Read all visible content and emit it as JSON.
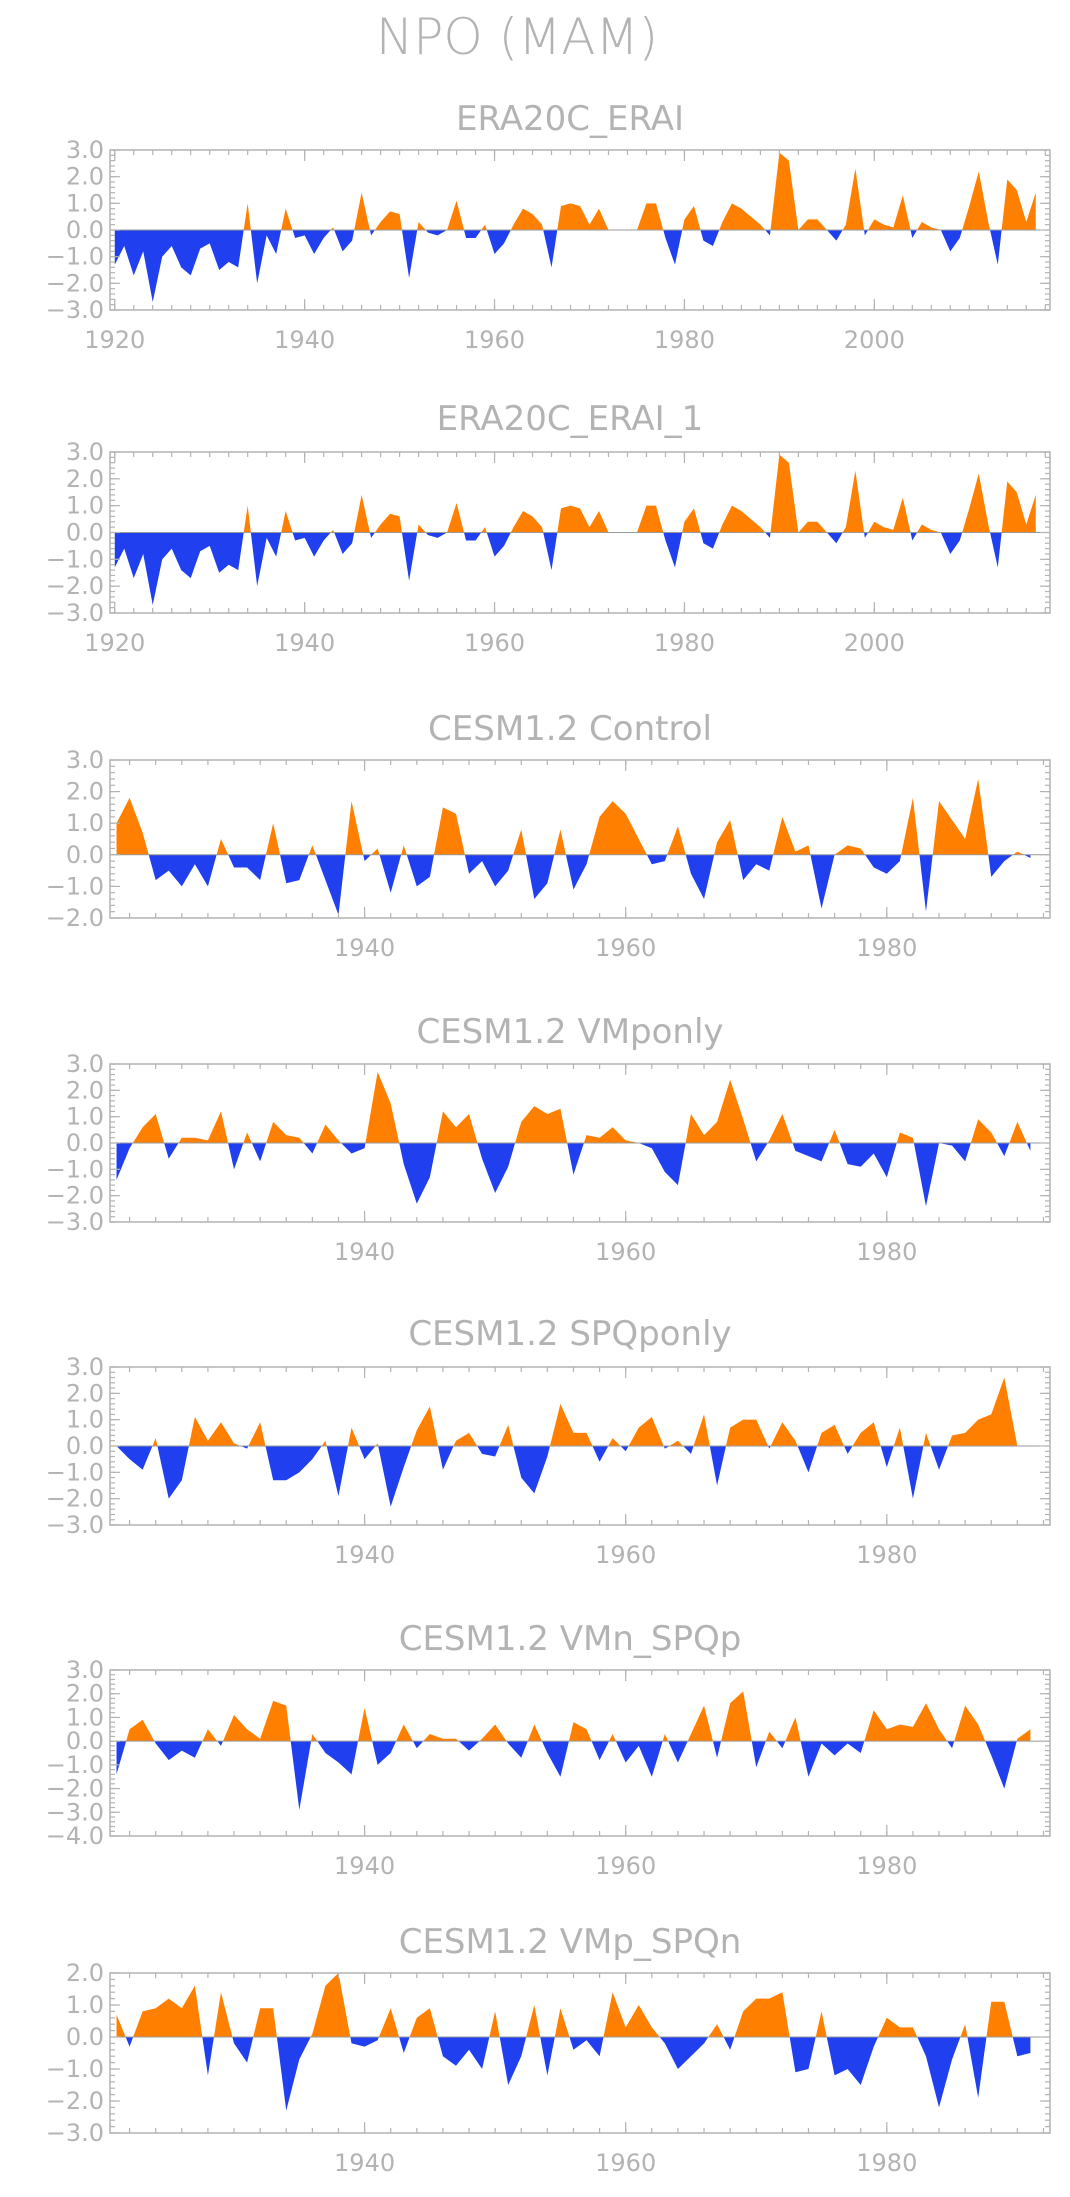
{
  "title": "NPO (MAM)",
  "colors": {
    "positive": "#ff8000",
    "negative": "#2040f0",
    "text": "#b3b3b3",
    "axis": "#b3b3b3"
  },
  "chart_data": [
    {
      "type": "area",
      "title": "ERA20C_ERAI",
      "x_start": 1920,
      "xlim": [
        1919.5,
        2018.5
      ],
      "xticks": [
        1920,
        1940,
        1960,
        1980,
        2000
      ],
      "ylim": [
        -3.0,
        3.0
      ],
      "yticks": [
        3.0,
        2.0,
        1.0,
        0.0,
        -1.0,
        -2.0,
        -3.0
      ],
      "y_tick_labels": [
        "3.0",
        "2.0",
        "1.0",
        "0.0",
        "−1.0",
        "−2.0",
        "−3.0"
      ],
      "values": [
        -1.3,
        -0.6,
        -1.7,
        -0.8,
        -2.7,
        -1.0,
        -0.6,
        -1.4,
        -1.7,
        -0.7,
        -0.5,
        -1.5,
        -1.2,
        -1.4,
        1.0,
        -2.0,
        -0.2,
        -0.9,
        0.8,
        -0.3,
        -0.2,
        -0.9,
        -0.3,
        0.1,
        -0.8,
        -0.4,
        1.4,
        -0.2,
        0.3,
        0.7,
        0.6,
        -1.8,
        0.3,
        -0.1,
        -0.2,
        0.0,
        1.1,
        -0.3,
        -0.3,
        0.2,
        -0.9,
        -0.5,
        0.2,
        0.8,
        0.6,
        0.2,
        -1.4,
        0.9,
        1.0,
        0.9,
        0.2,
        0.8,
        0.0,
        0.0,
        0.0,
        0.0,
        1.0,
        1.0,
        -0.3,
        -1.3,
        0.4,
        0.9,
        -0.4,
        -0.6,
        0.3,
        1.0,
        0.8,
        0.5,
        0.2,
        -0.2,
        2.9,
        2.6,
        0.0,
        0.4,
        0.4,
        0.0,
        -0.4,
        0.2,
        2.3,
        -0.2,
        0.4,
        0.2,
        0.1,
        1.3,
        -0.3,
        0.3,
        0.1,
        0.0,
        -0.8,
        -0.3,
        0.9,
        2.2,
        0.3,
        -1.3,
        1.9,
        1.5,
        0.3,
        1.4
      ]
    },
    {
      "type": "area",
      "title": "ERA20C_ERAI_1",
      "x_start": 1920,
      "xlim": [
        1919.5,
        2018.5
      ],
      "xticks": [
        1920,
        1940,
        1960,
        1980,
        2000
      ],
      "ylim": [
        -3.0,
        3.0
      ],
      "yticks": [
        3.0,
        2.0,
        1.0,
        0.0,
        -1.0,
        -2.0,
        -3.0
      ],
      "y_tick_labels": [
        "3.0",
        "2.0",
        "1.0",
        "0.0",
        "−1.0",
        "−2.0",
        "−3.0"
      ],
      "values": [
        -1.3,
        -0.6,
        -1.7,
        -0.8,
        -2.7,
        -1.0,
        -0.6,
        -1.4,
        -1.7,
        -0.7,
        -0.5,
        -1.5,
        -1.2,
        -1.4,
        1.0,
        -2.0,
        -0.2,
        -0.9,
        0.8,
        -0.3,
        -0.2,
        -0.9,
        -0.3,
        0.1,
        -0.8,
        -0.4,
        1.4,
        -0.2,
        0.3,
        0.7,
        0.6,
        -1.8,
        0.3,
        -0.1,
        -0.2,
        0.0,
        1.1,
        -0.3,
        -0.3,
        0.2,
        -0.9,
        -0.5,
        0.2,
        0.8,
        0.6,
        0.2,
        -1.4,
        0.9,
        1.0,
        0.9,
        0.2,
        0.8,
        0.0,
        0.0,
        0.0,
        0.0,
        1.0,
        1.0,
        -0.3,
        -1.3,
        0.4,
        0.9,
        -0.4,
        -0.6,
        0.3,
        1.0,
        0.8,
        0.5,
        0.2,
        -0.2,
        2.9,
        2.6,
        0.0,
        0.4,
        0.4,
        0.0,
        -0.4,
        0.2,
        2.3,
        -0.2,
        0.4,
        0.2,
        0.1,
        1.3,
        -0.3,
        0.3,
        0.1,
        0.0,
        -0.8,
        -0.3,
        0.9,
        2.2,
        0.3,
        -1.3,
        1.9,
        1.5,
        0.3,
        1.4
      ]
    },
    {
      "type": "area",
      "title": "CESM1.2 Control",
      "x_start": 1921,
      "xlim": [
        1920.5,
        1992.5
      ],
      "xticks": [
        1940,
        1960,
        1980
      ],
      "ylim": [
        -2.0,
        3.0
      ],
      "yticks": [
        3.0,
        2.0,
        1.0,
        0.0,
        -1.0,
        -2.0
      ],
      "y_tick_labels": [
        "3.0",
        "2.0",
        "1.0",
        "0.0",
        "−1.0",
        "−2.0"
      ],
      "values": [
        1.0,
        1.8,
        0.7,
        -0.8,
        -0.5,
        -1.0,
        -0.3,
        -1.0,
        0.5,
        -0.4,
        -0.4,
        -0.8,
        1.0,
        -0.9,
        -0.8,
        0.3,
        -0.8,
        -1.9,
        1.7,
        -0.2,
        0.2,
        -1.2,
        0.3,
        -1.0,
        -0.7,
        1.5,
        1.3,
        -0.6,
        -0.2,
        -1.0,
        -0.5,
        0.8,
        -1.4,
        -0.9,
        0.8,
        -1.1,
        -0.3,
        1.2,
        1.7,
        1.3,
        0.5,
        -0.3,
        -0.2,
        0.9,
        -0.6,
        -1.4,
        0.4,
        1.1,
        -0.8,
        -0.3,
        -0.5,
        1.2,
        0.1,
        0.3,
        -1.7,
        0.0,
        0.3,
        0.2,
        -0.4,
        -0.6,
        -0.2,
        1.8,
        -1.8,
        1.7,
        1.1,
        0.5,
        2.4,
        -0.7,
        -0.2,
        0.1,
        -0.1
      ]
    },
    {
      "type": "area",
      "title": "CESM1.2 VMponly",
      "x_start": 1921,
      "xlim": [
        1920.5,
        1992.5
      ],
      "xticks": [
        1940,
        1960,
        1980
      ],
      "ylim": [
        -3.0,
        3.0
      ],
      "yticks": [
        3.0,
        2.0,
        1.0,
        0.0,
        -1.0,
        -2.0,
        -3.0
      ],
      "y_tick_labels": [
        "3.0",
        "2.0",
        "1.0",
        "0.0",
        "−1.0",
        "−2.0",
        "−3.0"
      ],
      "values": [
        -1.4,
        -0.2,
        0.6,
        1.1,
        -0.6,
        0.2,
        0.2,
        0.1,
        1.2,
        -1.0,
        0.4,
        -0.7,
        0.8,
        0.3,
        0.2,
        -0.4,
        0.7,
        0.1,
        -0.4,
        -0.2,
        2.7,
        1.5,
        -0.8,
        -2.3,
        -1.3,
        1.2,
        0.6,
        1.1,
        -0.6,
        -1.9,
        -0.9,
        0.8,
        1.4,
        1.1,
        1.3,
        -1.2,
        0.3,
        0.2,
        0.6,
        0.1,
        0.0,
        -0.2,
        -1.1,
        -1.6,
        1.1,
        0.3,
        0.8,
        2.4,
        0.9,
        -0.7,
        0.1,
        1.1,
        -0.3,
        -0.5,
        -0.7,
        0.5,
        -0.8,
        -0.9,
        -0.4,
        -1.3,
        0.4,
        0.2,
        -2.4,
        0.0,
        -0.1,
        -0.7,
        0.9,
        0.4,
        -0.5,
        0.8,
        -0.3
      ]
    },
    {
      "type": "area",
      "title": "CESM1.2 SPQponly",
      "x_start": 1921,
      "xlim": [
        1920.5,
        1992.5
      ],
      "xticks": [
        1940,
        1960,
        1980
      ],
      "ylim": [
        -3.0,
        3.0
      ],
      "yticks": [
        3.0,
        2.0,
        1.0,
        0.0,
        -1.0,
        -2.0,
        -3.0
      ],
      "y_tick_labels": [
        "3.0",
        "2.0",
        "1.0",
        "0.0",
        "−1.0",
        "−2.0",
        "−3.0"
      ],
      "values": [
        0.0,
        -0.5,
        -0.9,
        0.3,
        -2.0,
        -1.3,
        1.1,
        0.2,
        0.9,
        0.1,
        -0.1,
        0.9,
        -1.3,
        -1.3,
        -1.0,
        -0.5,
        0.2,
        -1.9,
        0.7,
        -0.5,
        0.1,
        -2.3,
        -0.8,
        0.6,
        1.5,
        -0.9,
        0.2,
        0.5,
        -0.3,
        -0.4,
        0.8,
        -1.2,
        -1.8,
        -0.4,
        1.6,
        0.5,
        0.5,
        -0.6,
        0.3,
        -0.2,
        0.7,
        1.1,
        -0.1,
        0.2,
        -0.3,
        1.2,
        -1.5,
        0.7,
        1.0,
        1.0,
        -0.1,
        0.9,
        0.2,
        -1.0,
        0.5,
        0.8,
        -0.3,
        0.5,
        0.9,
        -0.8,
        0.7,
        -2.0,
        0.5,
        -0.9,
        0.4,
        0.5,
        1.0,
        1.2,
        2.6,
        0.0
      ]
    },
    {
      "type": "area",
      "title": "CESM1.2 VMn_SPQp",
      "x_start": 1921,
      "xlim": [
        1920.5,
        1992.5
      ],
      "xticks": [
        1940,
        1960,
        1980
      ],
      "ylim": [
        -4.0,
        3.0
      ],
      "yticks": [
        3.0,
        2.0,
        1.0,
        0.0,
        -1.0,
        -2.0,
        -3.0,
        -4.0
      ],
      "y_tick_labels": [
        "3.0",
        "2.0",
        "1.0",
        "0.0",
        "−1.0",
        "−2.0",
        "−3.0",
        "−4.0"
      ],
      "values": [
        -1.4,
        0.5,
        0.9,
        -0.1,
        -0.8,
        -0.4,
        -0.7,
        0.5,
        -0.2,
        1.1,
        0.5,
        0.1,
        1.7,
        1.5,
        -2.9,
        0.3,
        -0.5,
        -0.9,
        -1.4,
        1.4,
        -1.0,
        -0.5,
        0.7,
        -0.3,
        0.3,
        0.1,
        0.1,
        -0.4,
        0.1,
        0.7,
        -0.1,
        -0.7,
        0.7,
        -0.5,
        -1.5,
        0.8,
        0.5,
        -0.8,
        0.3,
        -0.9,
        -0.2,
        -1.5,
        0.3,
        -0.9,
        0.3,
        1.5,
        -0.7,
        1.6,
        2.1,
        -1.1,
        0.4,
        -0.3,
        1.0,
        -1.5,
        -0.1,
        -0.6,
        -0.1,
        -0.5,
        1.3,
        0.5,
        0.7,
        0.6,
        1.6,
        0.5,
        -0.3,
        1.5,
        0.7,
        -0.6,
        -2.0,
        0.1,
        0.5
      ]
    },
    {
      "type": "area",
      "title": "CESM1.2 VMp_SPQn",
      "x_start": 1921,
      "xlim": [
        1920.5,
        1992.5
      ],
      "xticks": [
        1940,
        1960,
        1980
      ],
      "ylim": [
        -3.0,
        2.0
      ],
      "yticks": [
        2.0,
        1.0,
        0.0,
        -1.0,
        -2.0,
        -3.0
      ],
      "y_tick_labels": [
        "2.0",
        "1.0",
        "0.0",
        "−1.0",
        "−2.0",
        "−3.0"
      ],
      "values": [
        0.7,
        -0.3,
        0.8,
        0.9,
        1.2,
        0.9,
        1.6,
        -1.2,
        1.4,
        -0.2,
        -0.8,
        0.9,
        0.9,
        -2.3,
        -0.7,
        0.1,
        1.6,
        2.0,
        -0.2,
        -0.3,
        -0.1,
        0.9,
        -0.5,
        0.6,
        0.9,
        -0.6,
        -0.9,
        -0.4,
        -1.0,
        0.8,
        -1.5,
        -0.6,
        1.0,
        -1.2,
        0.9,
        -0.4,
        -0.1,
        -0.6,
        1.4,
        0.3,
        1.0,
        0.3,
        -0.2,
        -1.0,
        -0.6,
        -0.2,
        0.4,
        -0.4,
        0.8,
        1.2,
        1.2,
        1.4,
        -1.1,
        -1.0,
        0.8,
        -1.2,
        -1.0,
        -1.5,
        -0.3,
        0.6,
        0.3,
        0.3,
        -0.6,
        -2.2,
        -0.7,
        0.4,
        -1.9,
        1.1,
        1.1,
        -0.6,
        -0.5
      ]
    }
  ]
}
